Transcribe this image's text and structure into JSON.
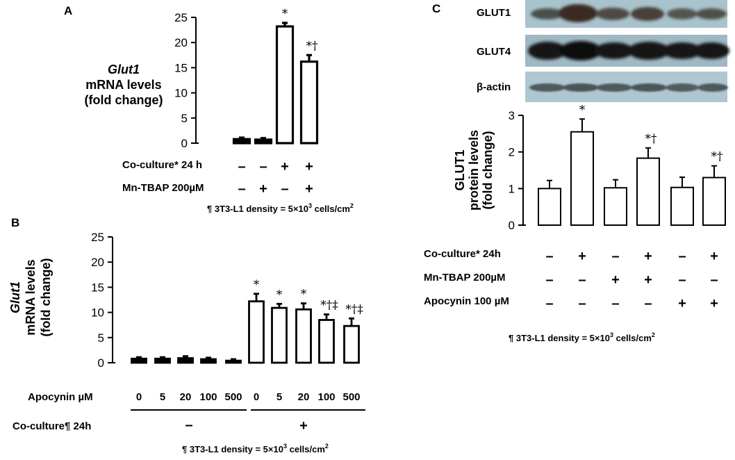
{
  "colors": {
    "bar_fill": "#ffffff",
    "bar_stroke": "#000000",
    "blot_bg": "#a8c2cc",
    "band_dark": "#1a1a1a"
  },
  "chart_data": [
    {
      "panel": "A",
      "type": "bar",
      "ylabel_lines": [
        "Glut1",
        "mRNA levels",
        "(fold change)"
      ],
      "yticks": [
        "0",
        "5",
        "10",
        "15",
        "20",
        "25"
      ],
      "ylim": [
        0,
        25
      ],
      "values": [
        0.8,
        0.7,
        23.2,
        16.2
      ],
      "errors": [
        0.3,
        0.3,
        0.7,
        1.3
      ],
      "annotations": [
        "",
        "",
        "*",
        "*†"
      ],
      "conditions": [
        {
          "label": "Co-culture* 24 h",
          "signs": [
            "–",
            "–",
            "+",
            "+"
          ]
        },
        {
          "label": "Mn-TBAP 200µM",
          "signs": [
            "–",
            "+",
            "–",
            "+"
          ]
        }
      ],
      "note": {
        "prefix": "¶ 3T3-L1 density = 5×10",
        "sup1": "3",
        "mid": " cells/cm",
        "sup2": "2"
      }
    },
    {
      "panel": "B",
      "type": "bar",
      "ylabel_lines": [
        "Glut1",
        "mRNA levels",
        "(fold change)"
      ],
      "yticks": [
        "0",
        "5",
        "10",
        "15",
        "20",
        "25"
      ],
      "ylim": [
        0,
        25
      ],
      "categories": [
        "0",
        "5",
        "20",
        "100",
        "500",
        "0",
        "5",
        "20",
        "100",
        "500"
      ],
      "values": [
        0.8,
        0.8,
        0.9,
        0.7,
        0.4,
        12.2,
        10.9,
        10.6,
        8.5,
        7.3
      ],
      "errors": [
        0.3,
        0.3,
        0.4,
        0.3,
        0.3,
        1.5,
        0.8,
        1.2,
        1.1,
        1.5
      ],
      "annotations": [
        "",
        "",
        "",
        "",
        "",
        "*",
        "*",
        "*",
        "*†‡",
        "*†‡"
      ],
      "apocynin_label": "Apocynin µM",
      "coculture_label": "Co-culture¶ 24h",
      "group_signs": [
        "–",
        "+"
      ],
      "note": {
        "prefix": "¶ 3T3-L1 density = 5×10",
        "sup1": "3",
        "mid": " cells/cm",
        "sup2": "2"
      }
    },
    {
      "panel": "C",
      "type": "bar",
      "ylabel_lines": [
        "GLUT1",
        "protein levels",
        "(fold change)"
      ],
      "yticks": [
        "0",
        "1",
        "2",
        "3"
      ],
      "ylim": [
        0,
        3
      ],
      "values": [
        1.0,
        2.55,
        1.02,
        1.83,
        1.03,
        1.3
      ],
      "errors": [
        0.22,
        0.35,
        0.22,
        0.28,
        0.28,
        0.32
      ],
      "annotations": [
        "",
        "*",
        "",
        "*†",
        "",
        "*†"
      ],
      "blots": [
        "GLUT1",
        "GLUT4",
        "β-actin"
      ],
      "conditions": [
        {
          "label": "Co-culture* 24h",
          "signs": [
            "–",
            "+",
            "–",
            "+",
            "–",
            "+"
          ]
        },
        {
          "label": "Mn-TBAP 200µM",
          "signs": [
            "–",
            "–",
            "+",
            "+",
            "–",
            "–"
          ]
        },
        {
          "label": "Apocynin 100 µM",
          "signs": [
            "–",
            "–",
            "–",
            "–",
            "+",
            "+"
          ]
        }
      ],
      "note": {
        "prefix": "¶ 3T3-L1 density = 5×10",
        "sup1": "3",
        "mid": " cells/cm",
        "sup2": "2"
      }
    }
  ]
}
